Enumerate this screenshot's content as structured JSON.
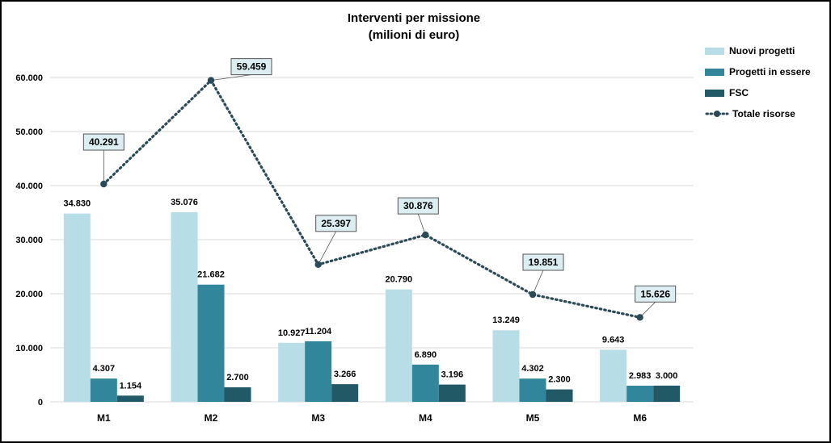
{
  "chart_data": {
    "type": "bar",
    "title": "Interventi per missione",
    "subtitle": "(milioni di euro)",
    "categories": [
      "M1",
      "M2",
      "M3",
      "M4",
      "M5",
      "M6"
    ],
    "ylim": [
      0,
      60000
    ],
    "yticks": [
      0,
      10000,
      20000,
      30000,
      40000,
      50000,
      60000
    ],
    "ytick_labels": [
      "0",
      "10.000",
      "20.000",
      "30.000",
      "40.000",
      "50.000",
      "60.000"
    ],
    "grid": true,
    "legend_position": "right",
    "series": [
      {
        "name": "Nuovi progetti",
        "type": "bar",
        "color": "#b7dde6",
        "values": [
          34830,
          35076,
          10927,
          20790,
          13249,
          9643
        ],
        "labels": [
          "34.830",
          "35.076",
          "10.927",
          "20.790",
          "13.249",
          "9.643"
        ]
      },
      {
        "name": "Progetti in essere",
        "type": "bar",
        "color": "#31869b",
        "values": [
          4307,
          21682,
          11204,
          6890,
          4302,
          2983
        ],
        "labels": [
          "4.307",
          "21.682",
          "11.204",
          "6.890",
          "4.302",
          "2.983"
        ]
      },
      {
        "name": "FSC",
        "type": "bar",
        "color": "#215967",
        "values": [
          1154,
          2700,
          3266,
          3196,
          2300,
          3000
        ],
        "labels": [
          "1.154",
          "2.700",
          "3.266",
          "3.196",
          "2.300",
          "3.000"
        ]
      },
      {
        "name": "Totale risorse",
        "type": "line",
        "style": "dotted",
        "color": "#2b4a57",
        "values": [
          40291,
          59459,
          25397,
          30876,
          19851,
          15626
        ],
        "labels": [
          "40.291",
          "59.459",
          "25.397",
          "30.876",
          "19.851",
          "15.626"
        ]
      }
    ]
  }
}
